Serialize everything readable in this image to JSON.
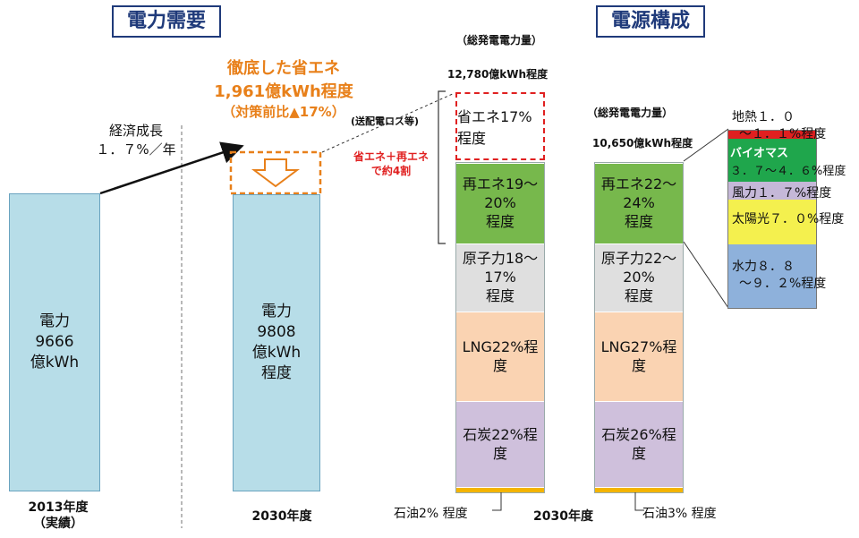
{
  "headers": {
    "left": "電力需要",
    "right": "電源構成"
  },
  "demand": {
    "growth_label_1": "経済成長",
    "growth_label_2": "１．７%／年",
    "bar2013": {
      "line1": "電力",
      "line2": "9666",
      "line3": "億kWh"
    },
    "bar2030": {
      "line1": "電力",
      "line2": "9808",
      "line3": "億kWh",
      "line4": "程度"
    },
    "saving_line1": "徹底した省エネ",
    "saving_line2": "1,961億kWh程度",
    "saving_line3": "（対策前比▲17%）",
    "saving_note": "(送配電ロス等)",
    "x2013_line1": "2013年度",
    "x2013_line2": "（実績）",
    "x2030": "2030年度"
  },
  "supply": {
    "total_label": "（総発電電力量）",
    "totalA_value": "12,780億kWh程度",
    "totalB_value": "10,650億kWh程度",
    "bracket_note_1": "省エネ＋再エネ",
    "bracket_note_2": "で約4割",
    "x_label": "2030年度",
    "oil_left": "石油2% 程度",
    "oil_right": "石油3% 程度",
    "barA": {
      "savings": "省エネ17%程度",
      "renew": {
        "l1": "再エネ19～20%",
        "l2": "程度"
      },
      "nuclear": {
        "l1": "原子力18～17%",
        "l2": "程度"
      },
      "lng": "LNG22%程度",
      "coal": "石炭22%程度"
    },
    "barB": {
      "renew": {
        "l1": "再エネ22～24%",
        "l2": "程度"
      },
      "nuclear": {
        "l1": "原子力22～20%",
        "l2": "程度"
      },
      "lng": "LNG27%程度",
      "coal": "石炭26%程度"
    },
    "renew_breakdown": {
      "geothermal_1": "地熱１．０",
      "geothermal_2": "～１．１%程度",
      "biomass_1": "バイオマス",
      "biomass_2": "３．７～４．６%程度",
      "wind": "風力１．７%程度",
      "solar": "太陽光７．０%程度",
      "hydro_1": "水力８．８",
      "hydro_2": "～９．２%程度"
    }
  },
  "colors": {
    "demand_bar": "#b7dde8",
    "renew": "#77b84c",
    "nuclear": "#dfdfdf",
    "lng": "#fad3b2",
    "coal": "#cfc0dc",
    "oil": "#f4b400",
    "hydro": "#8eb1db",
    "solar": "#f4f04e",
    "wind": "#c5b8d8",
    "biomass": "#1fa64c",
    "geothermal": "#e02020",
    "accent_orange": "#e8801a",
    "accent_red": "#e02020",
    "title": "#1f3a7a"
  },
  "chart_data": [
    {
      "type": "bar",
      "title": "電力需要",
      "categories": [
        "2013年度（実績）",
        "2030年度"
      ],
      "values": [
        9666,
        9808
      ],
      "unit": "億kWh",
      "annotations": [
        "経済成長１．７%／年",
        "徹底した省エネ 1,961億kWh程度（対策前比▲17%）"
      ]
    },
    {
      "type": "bar",
      "title": "電源構成",
      "categories": [
        "2030年度 (12,780億kWh程度)",
        "2030年度 (10,650億kWh程度)"
      ],
      "series": [
        {
          "name": "省エネ",
          "values": [
            17,
            null
          ]
        },
        {
          "name": "再エネ",
          "values": [
            "19～20",
            "22～24"
          ]
        },
        {
          "name": "原子力",
          "values": [
            "18～17",
            "22～20"
          ]
        },
        {
          "name": "LNG",
          "values": [
            22,
            27
          ]
        },
        {
          "name": "石炭",
          "values": [
            22,
            26
          ]
        },
        {
          "name": "石油",
          "values": [
            2,
            3
          ]
        }
      ],
      "renewable_breakdown": [
        {
          "name": "地熱",
          "value": "1.0～1.1"
        },
        {
          "name": "バイオマス",
          "value": "3.7～4.6"
        },
        {
          "name": "風力",
          "value": "1.7"
        },
        {
          "name": "太陽光",
          "value": "7.0"
        },
        {
          "name": "水力",
          "value": "8.8～9.2"
        }
      ]
    }
  ]
}
